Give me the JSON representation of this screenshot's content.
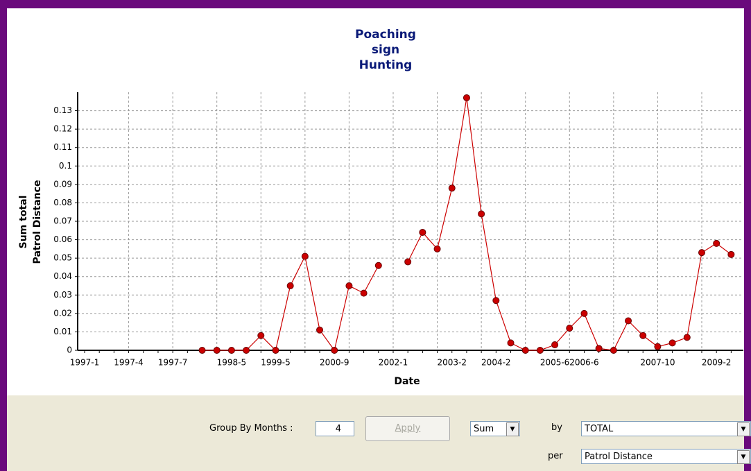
{
  "chart_data": {
    "type": "line",
    "title": [
      "Poaching",
      "sign",
      "Hunting"
    ],
    "xlabel": "Date",
    "ylabel": [
      "Sum total",
      "Patrol Distance"
    ],
    "categories": [
      "1997-1",
      null,
      null,
      "1997-4",
      null,
      null,
      "1997-7",
      null,
      null,
      null,
      "1998-5",
      null,
      null,
      "1999-5",
      null,
      null,
      null,
      "2000-9",
      null,
      null,
      null,
      "2002-1",
      null,
      null,
      null,
      "2003-2",
      null,
      null,
      "2004-2",
      null,
      null,
      null,
      "2005-6",
      null,
      "2006-6",
      null,
      null,
      null,
      null,
      "2007-10",
      null,
      null,
      null,
      "2009-2",
      null
    ],
    "series": [
      {
        "name": "Hunting",
        "color": "#cc0000",
        "values": [
          null,
          null,
          null,
          null,
          null,
          null,
          null,
          null,
          0,
          0,
          0,
          0,
          0.008,
          0,
          0.035,
          0.051,
          0.011,
          0,
          0.035,
          0.031,
          0.046,
          null,
          0.048,
          0.064,
          0.055,
          0.088,
          0.137,
          0.074,
          0.027,
          0.004,
          0,
          0,
          0.003,
          0.012,
          0.02,
          0.001,
          0,
          0.016,
          0.008,
          0.002,
          0.004,
          0.007,
          0.053,
          0.058,
          0.052
        ]
      }
    ],
    "ylim": [
      0,
      0.14
    ],
    "yticks": [
      0,
      0.01,
      0.02,
      0.03,
      0.04,
      0.05,
      0.06,
      0.07,
      0.08,
      0.09,
      0.1,
      0.11,
      0.12,
      0.13
    ],
    "grid": true
  },
  "controls": {
    "group_label": "Group By Months :",
    "group_value": "4",
    "apply": "Apply",
    "aggregate": "Sum",
    "by_label": "by",
    "by_value": "TOTAL",
    "per_label": "per",
    "per_value": "Patrol Distance"
  }
}
